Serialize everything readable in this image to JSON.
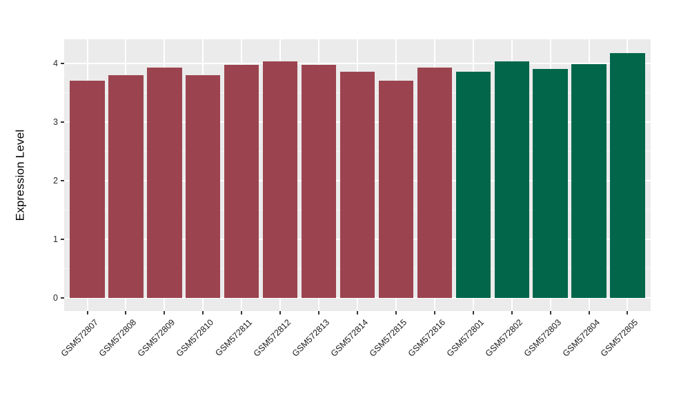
{
  "chart_data": {
    "type": "bar",
    "title": "",
    "xlabel": "",
    "ylabel": "Expression Level",
    "ylim": [
      0,
      4.2
    ],
    "yticks": [
      0,
      1,
      2,
      3,
      4
    ],
    "minor_gridlines": [
      0.5,
      1.5,
      2.5,
      3.5
    ],
    "grid": "on",
    "legend": "none",
    "categories": [
      "GSM572807",
      "GSM572808",
      "GSM572809",
      "GSM572810",
      "GSM572811",
      "GSM572812",
      "GSM572813",
      "GSM572814",
      "GSM572815",
      "GSM572816",
      "GSM572801",
      "GSM572802",
      "GSM572803",
      "GSM572804",
      "GSM572805"
    ],
    "series": [
      {
        "name": "group-red",
        "color": "#9B4450",
        "members": [
          "GSM572807",
          "GSM572808",
          "GSM572809",
          "GSM572810",
          "GSM572811",
          "GSM572812",
          "GSM572813",
          "GSM572814",
          "GSM572815",
          "GSM572816"
        ]
      },
      {
        "name": "group-green",
        "color": "#02664A",
        "members": [
          "GSM572801",
          "GSM572802",
          "GSM572803",
          "GSM572804",
          "GSM572805"
        ]
      }
    ],
    "bars": [
      {
        "label": "GSM572807",
        "value": 3.71,
        "group": "group-red"
      },
      {
        "label": "GSM572808",
        "value": 3.8,
        "group": "group-red"
      },
      {
        "label": "GSM572809",
        "value": 3.93,
        "group": "group-red"
      },
      {
        "label": "GSM572810",
        "value": 3.8,
        "group": "group-red"
      },
      {
        "label": "GSM572811",
        "value": 3.97,
        "group": "group-red"
      },
      {
        "label": "GSM572812",
        "value": 4.03,
        "group": "group-red"
      },
      {
        "label": "GSM572813",
        "value": 3.97,
        "group": "group-red"
      },
      {
        "label": "GSM572814",
        "value": 3.86,
        "group": "group-red"
      },
      {
        "label": "GSM572815",
        "value": 3.7,
        "group": "group-red"
      },
      {
        "label": "GSM572816",
        "value": 3.93,
        "group": "group-red"
      },
      {
        "label": "GSM572801",
        "value": 3.86,
        "group": "group-green"
      },
      {
        "label": "GSM572802",
        "value": 4.03,
        "group": "group-green"
      },
      {
        "label": "GSM572803",
        "value": 3.9,
        "group": "group-green"
      },
      {
        "label": "GSM572804",
        "value": 3.99,
        "group": "group-green"
      },
      {
        "label": "GSM572805",
        "value": 4.17,
        "group": "group-green"
      }
    ],
    "colors": {
      "panel_background": "#EBEBEB",
      "major_gridline": "#FFFFFF",
      "minor_gridline": "#F6F6F6",
      "tick_mark": "#333333",
      "tick_label": "#2B2B2B",
      "axis_title": "#000000"
    }
  }
}
